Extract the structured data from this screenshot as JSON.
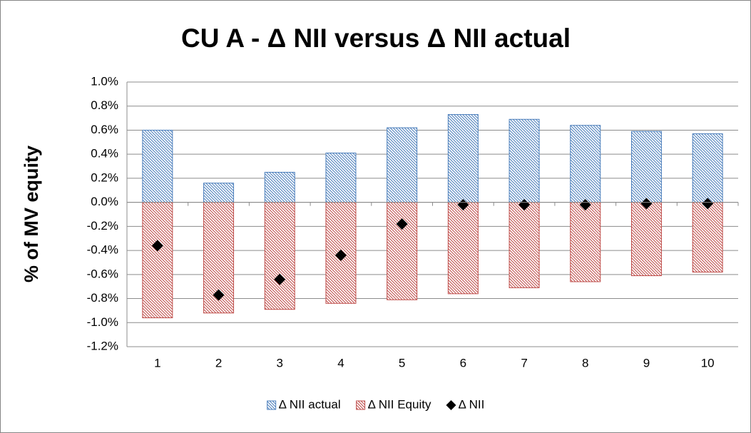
{
  "chart_data": {
    "type": "bar",
    "title": "CU A - Δ NII versus Δ NII actual",
    "y_label": "% of MV equity",
    "categories": [
      1,
      2,
      3,
      4,
      5,
      6,
      7,
      8,
      9,
      10
    ],
    "series": [
      {
        "name": "Δ NII actual",
        "type": "bar",
        "color": "#4f81bd",
        "values": [
          0.6,
          0.16,
          0.25,
          0.41,
          0.62,
          0.73,
          0.69,
          0.64,
          0.59,
          0.57
        ]
      },
      {
        "name": "Δ NII Equity",
        "type": "bar",
        "color": "#c0504d",
        "values": [
          -0.96,
          -0.92,
          -0.89,
          -0.84,
          -0.81,
          -0.76,
          -0.71,
          -0.66,
          -0.61,
          -0.58
        ]
      },
      {
        "name": "Δ NII",
        "type": "scatter",
        "color": "#000000",
        "values": [
          -0.36,
          -0.77,
          -0.64,
          -0.44,
          -0.18,
          -0.02,
          -0.02,
          -0.02,
          -0.01,
          -0.01
        ]
      }
    ],
    "ylim": [
      -1.2,
      1.0
    ],
    "yticks": [
      {
        "value": -1.2,
        "label": "-1.2%"
      },
      {
        "value": -1.0,
        "label": "-1.0%"
      },
      {
        "value": -0.8,
        "label": "-0.8%"
      },
      {
        "value": -0.6,
        "label": "-0.6%"
      },
      {
        "value": -0.4,
        "label": "-0.4%"
      },
      {
        "value": -0.2,
        "label": "-0.2%"
      },
      {
        "value": 0,
        "label": "0.0%"
      },
      {
        "value": 0.2,
        "label": "0.2%"
      },
      {
        "value": 0.4,
        "label": "0.4%"
      },
      {
        "value": 0.6,
        "label": "0.6%"
      },
      {
        "value": 0.8,
        "label": "0.8%"
      },
      {
        "value": 1.0,
        "label": "1.0%"
      }
    ],
    "grid": true,
    "legend": "bottom"
  }
}
